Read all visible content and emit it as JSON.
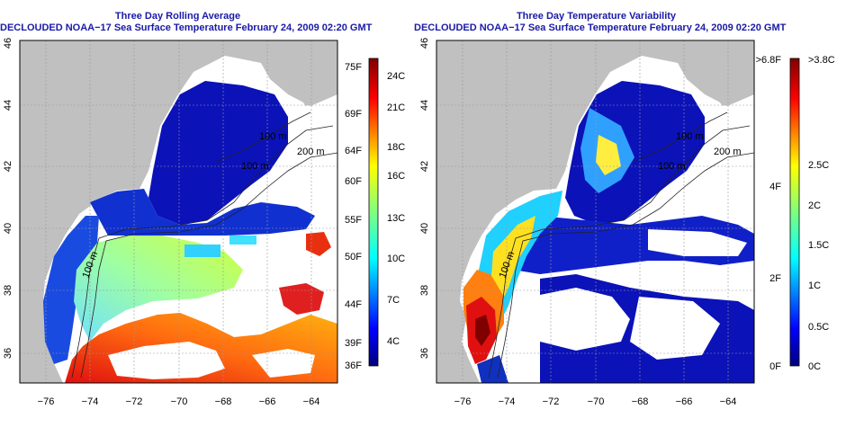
{
  "left_panel": {
    "title1": "Three Day Rolling Average",
    "title2": "DECLOUDED NOAA−17 Sea Surface Temperature February 24, 2009 02:20 GMT",
    "x_ticks": [
      "−76",
      "−74",
      "−72",
      "−70",
      "−68",
      "−66",
      "−64"
    ],
    "y_ticks": [
      "46",
      "44",
      "42",
      "40",
      "38",
      "36"
    ],
    "contours": [
      "100 m",
      "200 m",
      "100 m",
      "100 m"
    ],
    "colorbar": {
      "left_labels": [
        "75F",
        "69F",
        "64F",
        "60F",
        "55F",
        "50F",
        "44F",
        "39F",
        "36F"
      ],
      "right_labels": [
        "24C",
        "21C",
        "18C",
        "16C",
        "13C",
        "10C",
        "7C",
        "4C"
      ]
    }
  },
  "right_panel": {
    "title1": "Three Day Temperature Variability",
    "title2": "DECLOUDED NOAA−17 Sea Surface Temperature February 24, 2009 02:20 GMT",
    "x_ticks": [
      "−76",
      "−74",
      "−72",
      "−70",
      "−68",
      "−66",
      "−64"
    ],
    "y_ticks": [
      "46",
      "44",
      "42",
      "40",
      "38",
      "36"
    ],
    "contours": [
      "100 m",
      "200 m",
      "100 m",
      "100 m"
    ],
    "colorbar": {
      "left_labels": [
        ">6.8F",
        "4F",
        "2F",
        "0F"
      ],
      "right_labels": [
        ">3.8C",
        "2.5C",
        "2C",
        "1.5C",
        "1C",
        "0.5C",
        "0C"
      ]
    }
  },
  "colors": {
    "land": "#c0c0c0",
    "title": "#1a1aa8",
    "deep_blue": "#0b12b8",
    "ocean_blue": "#1a4be0"
  }
}
